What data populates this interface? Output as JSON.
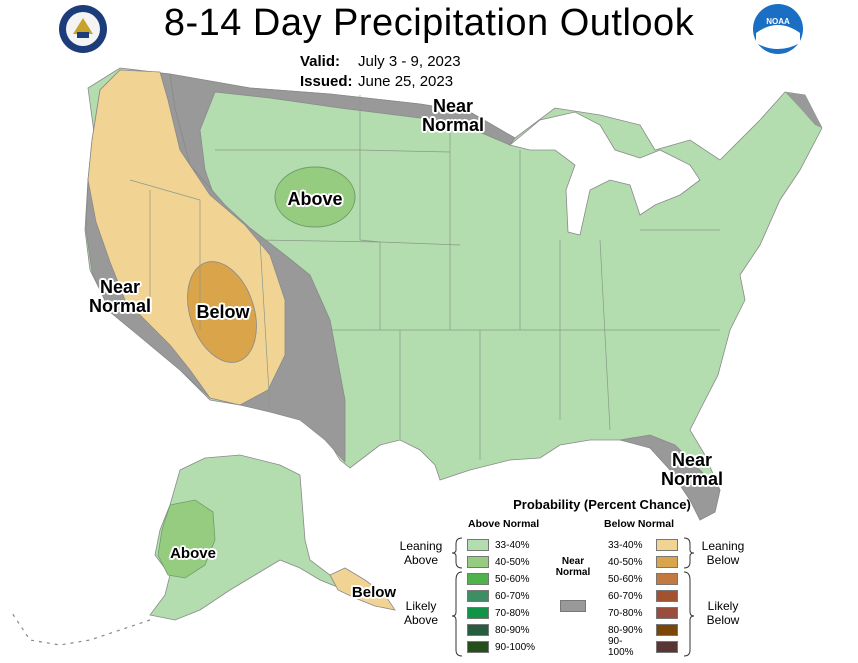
{
  "title": "8-14 Day Precipitation Outlook",
  "valid": {
    "label": "Valid:",
    "value": "July 3 - 9, 2023"
  },
  "issued": {
    "label": "Issued:",
    "value": "June 25, 2023"
  },
  "logos": {
    "noaa_text": "NOAA"
  },
  "map_labels": {
    "near_normal_north": "Near Normal",
    "near_normal_west": "Near Normal",
    "near_normal_southeast": "Near Normal",
    "above_plains": "Above",
    "below_southwest": "Below",
    "above_alaska": "Above",
    "below_alaska": "Below"
  },
  "legend": {
    "title": "Probability (Percent Chance)",
    "above_header": "Above Normal",
    "below_header": "Below Normal",
    "near_normal": "Near Normal",
    "groups": {
      "leaning_above": "Leaning Above",
      "likely_above": "Likely Above",
      "leaning_below": "Leaning Below",
      "likely_below": "Likely Below"
    },
    "above": [
      {
        "range": "33-40%",
        "color": "#b3dcaf"
      },
      {
        "range": "40-50%",
        "color": "#95cc80"
      },
      {
        "range": "50-60%",
        "color": "#4db34a"
      },
      {
        "range": "60-70%",
        "color": "#3d8e64"
      },
      {
        "range": "70-80%",
        "color": "#119448"
      },
      {
        "range": "80-90%",
        "color": "#285c40"
      },
      {
        "range": "90-100%",
        "color": "#244f1d"
      }
    ],
    "below": [
      {
        "range": "33-40%",
        "color": "#f1d394"
      },
      {
        "range": "40-50%",
        "color": "#d9a44a"
      },
      {
        "range": "50-60%",
        "color": "#c27a3f"
      },
      {
        "range": "60-70%",
        "color": "#a2522f"
      },
      {
        "range": "70-80%",
        "color": "#9a4d3c"
      },
      {
        "range": "80-90%",
        "color": "#7a4709"
      },
      {
        "range": "90-100%",
        "color": "#5a3535"
      }
    ],
    "near_color": "#999999"
  }
}
